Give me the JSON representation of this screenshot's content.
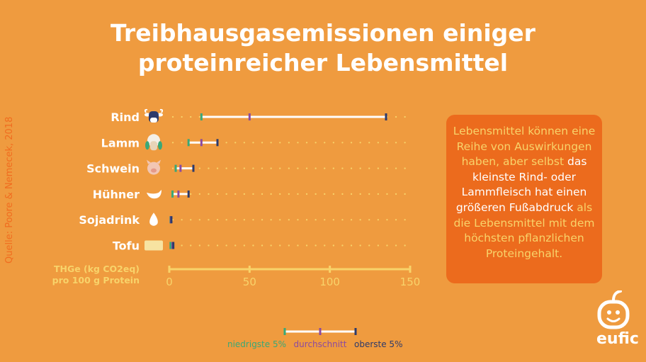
{
  "title_line1": "Treibhausgasemissionen einiger",
  "title_line2": "proteinreicher Lebensmittel",
  "source": "Quelle: Poore & Nemecek, 2018",
  "callout": {
    "parts": [
      {
        "text": "Lebensmittel können eine Reihe von Auswirkungen haben, aber selbst ",
        "style": "hl"
      },
      {
        "text": "das kleinste Rind- oder Lammfleisch hat einen größeren Fußabdruck ",
        "style": "wh"
      },
      {
        "text": "als die Lebensmittel mit dem höchsten pflanzlichen Proteingehalt.",
        "style": "hl"
      }
    ]
  },
  "logo_text": "eufic",
  "colors": {
    "background": "#ef9b3f",
    "low": "#3aa877",
    "avg": "#8b4aa0",
    "high": "#2d3a6b",
    "axis": "#f8d36a",
    "range": "#ffffff",
    "label": "#ffffff"
  },
  "chart_data": {
    "type": "range-dot",
    "title": "Treibhausgasemissionen einiger proteinreicher Lebensmittel",
    "xlabel_line1": "THGe (kg CO2eq)",
    "xlabel_line2": "pro 100 g Protein",
    "xlim": [
      0,
      150
    ],
    "ticks": [
      0,
      50,
      100,
      150
    ],
    "categories": [
      "Rind",
      "Lamm",
      "Schwein",
      "Hühner",
      "Sojadrink",
      "Tofu"
    ],
    "icons": [
      "cow-icon",
      "sheep-icon",
      "pig-icon",
      "chicken-icon",
      "drop-icon",
      "tofu-icon"
    ],
    "series": [
      {
        "name": "niedrigste 5%",
        "values": [
          20,
          12,
          4,
          2,
          0.8,
          0.8
        ]
      },
      {
        "name": "durchschnitt",
        "values": [
          50,
          20,
          7,
          5.7,
          1.0,
          2.0
        ]
      },
      {
        "name": "oberste 5%",
        "values": [
          135,
          30,
          15,
          12,
          1.3,
          2.5
        ]
      }
    ],
    "legend": {
      "position": "bottom-center",
      "labels": [
        "niedrigste 5%",
        "durchschnitt",
        "oberste 5%"
      ]
    }
  }
}
